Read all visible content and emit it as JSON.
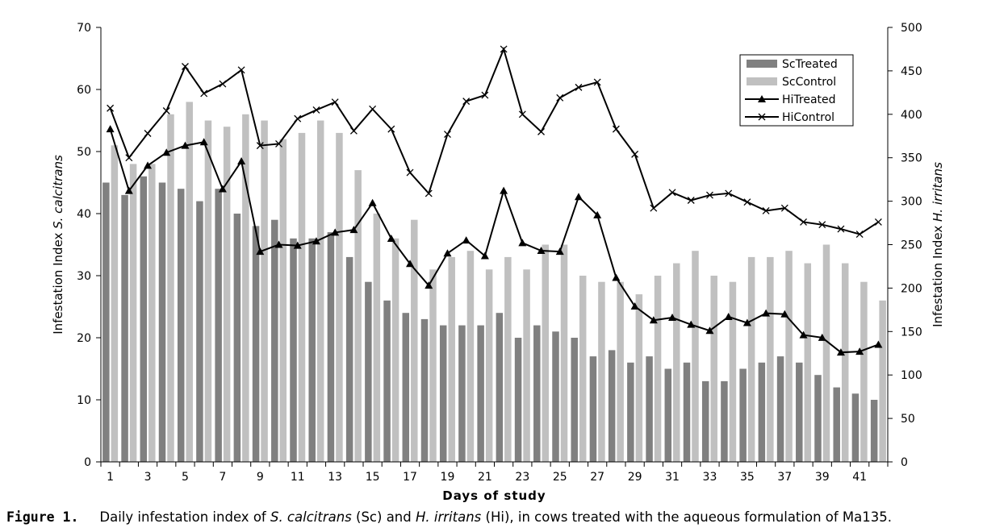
{
  "chart_data": {
    "type": "bar",
    "x_label": "Days of study",
    "y_left_label_parts": [
      "Infestation Index ",
      "S. calcitrans"
    ],
    "y_right_label_parts": [
      "Infestation Index ",
      "H. irritans"
    ],
    "y_left_range": [
      0,
      70
    ],
    "y_left_ticks": [
      0,
      10,
      20,
      30,
      40,
      50,
      60,
      70
    ],
    "y_right_range": [
      0,
      500
    ],
    "y_right_ticks": [
      0,
      50,
      100,
      150,
      200,
      250,
      300,
      350,
      400,
      450,
      500
    ],
    "x_tick_labels": [
      "1",
      "3",
      "5",
      "7",
      "9",
      "11",
      "13",
      "15",
      "17",
      "19",
      "21",
      "23",
      "25",
      "27",
      "29",
      "31",
      "33",
      "35",
      "37",
      "39",
      "41"
    ],
    "grid": false,
    "legend_position": "top-right",
    "days": [
      1,
      2,
      3,
      4,
      5,
      6,
      7,
      8,
      9,
      10,
      11,
      12,
      13,
      14,
      15,
      16,
      17,
      18,
      19,
      20,
      21,
      22,
      23,
      24,
      25,
      26,
      27,
      28,
      29,
      30,
      31,
      32,
      33,
      34,
      35,
      36,
      37,
      38,
      39,
      40,
      41,
      42
    ],
    "series": [
      {
        "name": "ScTreated",
        "type": "bar",
        "axis": "left",
        "color": "#808080",
        "values": [
          45,
          43,
          46,
          45,
          44,
          42,
          44,
          40,
          38,
          39,
          36,
          36,
          37,
          33,
          29,
          26,
          24,
          23,
          22,
          22,
          22,
          24,
          20,
          22,
          21,
          20,
          17,
          18,
          16,
          17,
          15,
          16,
          13,
          13,
          15,
          16,
          17,
          16,
          14,
          12,
          11,
          10
        ]
      },
      {
        "name": "ScControl",
        "type": "bar",
        "axis": "left",
        "color": "#c0c0c0",
        "values": [
          51,
          48,
          48,
          56,
          58,
          55,
          54,
          56,
          55,
          52,
          53,
          55,
          53,
          47,
          40,
          36,
          39,
          31,
          33,
          34,
          31,
          33,
          31,
          35,
          35,
          30,
          29,
          29,
          27,
          30,
          32,
          34,
          30,
          29,
          33,
          33,
          34,
          32,
          35,
          32,
          29,
          26
        ]
      },
      {
        "name": "HiTreated",
        "type": "line",
        "axis": "right",
        "marker": "triangle",
        "color": "#000000",
        "values": [
          383,
          312,
          341,
          356,
          364,
          368,
          314,
          346,
          242,
          250,
          249,
          254,
          264,
          267,
          298,
          257,
          228,
          203,
          240,
          255,
          237,
          312,
          252,
          243,
          242,
          305,
          284,
          212,
          179,
          163,
          166,
          158,
          151,
          167,
          160,
          171,
          170,
          146,
          143,
          126,
          127,
          135
        ]
      },
      {
        "name": "HiControl",
        "type": "line",
        "axis": "right",
        "marker": "x",
        "color": "#000000",
        "values": [
          407,
          350,
          378,
          404,
          455,
          424,
          435,
          451,
          364,
          366,
          395,
          405,
          414,
          381,
          406,
          383,
          333,
          309,
          377,
          415,
          422,
          475,
          400,
          380,
          419,
          431,
          437,
          383,
          354,
          292,
          310,
          301,
          307,
          309,
          299,
          289,
          292,
          276,
          273,
          268,
          262,
          276
        ]
      }
    ]
  },
  "caption": {
    "fig_label": "Figure 1.",
    "parts": [
      {
        "text": "Daily infestation index of ",
        "italic": false
      },
      {
        "text": "S. calcitrans",
        "italic": true
      },
      {
        "text": " (Sc) and ",
        "italic": false
      },
      {
        "text": "H. irritans",
        "italic": true
      },
      {
        "text": " (Hi), in cows treated with the aqueous formulation of Ma135.",
        "italic": false
      }
    ]
  }
}
